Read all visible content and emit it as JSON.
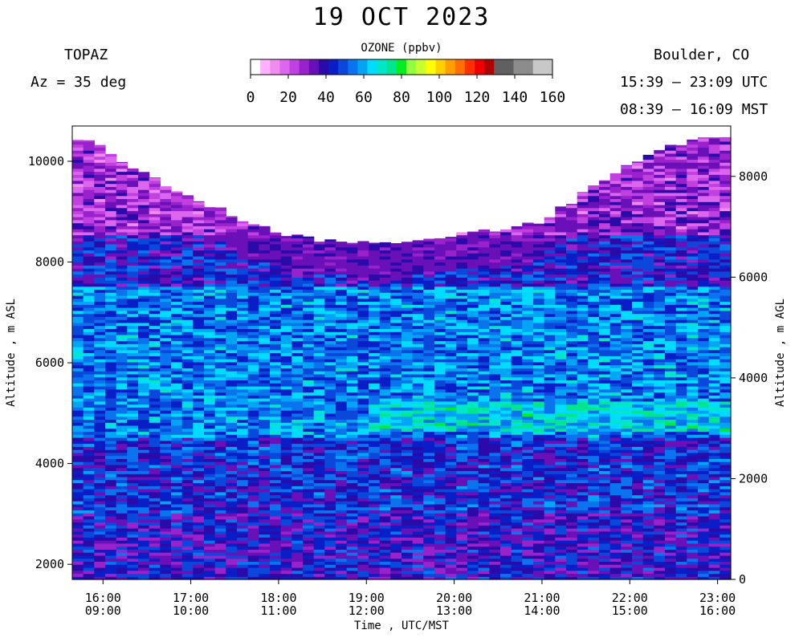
{
  "header": {
    "title": "19 OCT 2023",
    "instrument": "TOPAZ",
    "azimuth": "Az =  35 deg",
    "location": "Boulder, CO",
    "time_utc": "15:39 – 23:09 UTC",
    "time_mst": "08:39 – 16:09 MST"
  },
  "colorbar": {
    "label": "OZONE (ppbv)",
    "ticks": [
      "0",
      "20",
      "40",
      "60",
      "80",
      "100",
      "120",
      "140",
      "160"
    ],
    "colors": [
      "#ffffff",
      "#ffb3ff",
      "#f08cf0",
      "#dd66ee",
      "#c040e0",
      "#9a22cc",
      "#6a10b8",
      "#2a0aa8",
      "#0a1ec8",
      "#0a48dc",
      "#0a74ee",
      "#00a6f5",
      "#00dcff",
      "#00e6c8",
      "#00e690",
      "#00ee22",
      "#90ff40",
      "#c8ff30",
      "#ffff00",
      "#ffd000",
      "#ffa000",
      "#ff7000",
      "#ff3000",
      "#ee0000",
      "#b00000",
      "#606060",
      "#606060",
      "#8c8c8c",
      "#8c8c8c",
      "#c8c8c8",
      "#c8c8c8"
    ]
  },
  "chart_data": {
    "type": "heatmap",
    "title": "19 OCT 2023",
    "xlabel": "Time , UTC/MST",
    "ylabel_left": "Altitude , m ASL",
    "ylabel_right": "Altitude , m AGL",
    "x_ticks_utc": [
      "16:00",
      "17:00",
      "18:00",
      "19:00",
      "20:00",
      "21:00",
      "22:00",
      "23:00"
    ],
    "x_ticks_mst": [
      "09:00",
      "10:00",
      "11:00",
      "12:00",
      "13:00",
      "14:00",
      "15:00",
      "16:00"
    ],
    "xlim_utc_hours": [
      15.65,
      23.15
    ],
    "y_ticks_left": [
      "2000",
      "4000",
      "6000",
      "8000",
      "10000"
    ],
    "ylim_left": [
      1700,
      10700
    ],
    "y_ticks_right": [
      "0",
      "2000",
      "4000",
      "6000",
      "8000"
    ],
    "surface_altitude_m": 1700,
    "colorbar_range": [
      0,
      160
    ],
    "top_altitude_profile": {
      "hours": [
        15.65,
        16.0,
        16.5,
        17.0,
        17.5,
        18.0,
        18.5,
        19.0,
        19.5,
        20.0,
        20.5,
        21.0,
        21.5,
        22.0,
        22.5,
        23.0,
        23.15
      ],
      "altitude_m": [
        10450,
        10300,
        9700,
        9300,
        8900,
        8600,
        8450,
        8350,
        8450,
        8550,
        8650,
        8800,
        9400,
        9900,
        10300,
        10500,
        10500
      ]
    },
    "ozone_layers": [
      {
        "alt_range": [
          1700,
          3000
        ],
        "ppbv": 40
      },
      {
        "alt_range": [
          3000,
          4500
        ],
        "ppbv": 45
      },
      {
        "alt_range": [
          4500,
          5500
        ],
        "ppbv": 55
      },
      {
        "alt_range": [
          4600,
          5200
        ],
        "ppbv": 65,
        "hours": [
          19.0,
          23.15
        ]
      },
      {
        "alt_range": [
          5500,
          7500
        ],
        "ppbv": 55
      },
      {
        "alt_range": [
          7500,
          8500
        ],
        "ppbv": 42
      },
      {
        "alt_range": [
          8500,
          10500
        ],
        "ppbv": 28
      }
    ]
  }
}
